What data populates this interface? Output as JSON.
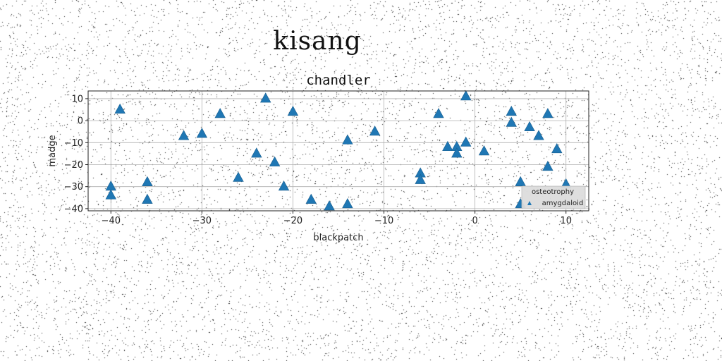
{
  "suptitle": "kisang",
  "chart_data": {
    "type": "scatter",
    "title": "chandler",
    "xlabel": "blackpatch",
    "ylabel": "madge",
    "xlim": [
      -42.5,
      12.5
    ],
    "ylim": [
      -41,
      13.5
    ],
    "xticks": [
      -40,
      -30,
      -20,
      -10,
      0,
      10
    ],
    "yticks": [
      -40,
      -30,
      -20,
      -10,
      0,
      10
    ],
    "grid": true,
    "legend_position": "lower-right",
    "legend_entries": [
      "osteotrophy",
      "amygdaloid"
    ],
    "marker": "triangle-up",
    "color": "#1f77b4",
    "series": [
      {
        "x": [
          -40,
          -40,
          -39,
          -36,
          -36,
          -32,
          -30,
          -28,
          -26,
          -24,
          -23,
          -22,
          -21,
          -20,
          -18,
          -16,
          -14,
          -14,
          -11,
          -6,
          -6,
          -4,
          -3,
          -2,
          -2,
          -1,
          -1,
          1,
          4,
          4,
          5,
          5,
          6,
          7,
          8,
          8,
          9,
          10
        ],
        "y": [
          -30,
          -34,
          5,
          -28,
          -36,
          -7,
          -6,
          3,
          -26,
          -15,
          10,
          -19,
          -30,
          4,
          -36,
          -39,
          -38,
          -9,
          -5,
          -24,
          -27,
          3,
          -12,
          -12,
          -15,
          11,
          -10,
          -14,
          4,
          -1,
          -28,
          -38,
          -3,
          -7,
          3,
          -21,
          -13,
          -29
        ]
      }
    ]
  }
}
